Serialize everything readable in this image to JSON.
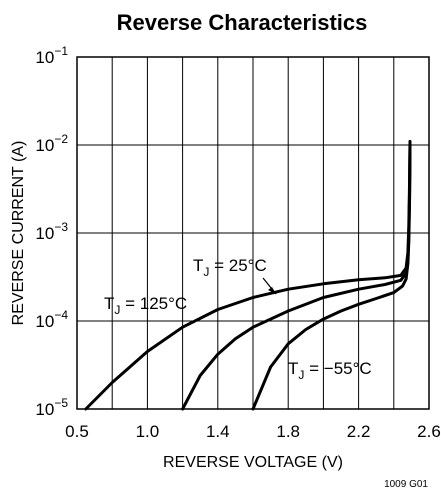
{
  "chart_data": {
    "type": "line",
    "title": "Reverse Characteristics",
    "xlabel": "REVERSE VOLTAGE (V)",
    "ylabel": "REVERSE CURRENT (A)",
    "x_ticks": [
      "0.5",
      "1.0",
      "1.4",
      "1.8",
      "2.2",
      "2.6"
    ],
    "y_ticks": [
      {
        "base": "10",
        "exp": "−1"
      },
      {
        "base": "10",
        "exp": "−2"
      },
      {
        "base": "10",
        "exp": "−3"
      },
      {
        "base": "10",
        "exp": "−4"
      },
      {
        "base": "10",
        "exp": "−5"
      }
    ],
    "xlim": [
      0.6,
      2.6
    ],
    "ylim": [
      1e-05,
      0.1
    ],
    "yscale": "log",
    "grid": true,
    "series": [
      {
        "name": "TJ = 125°C",
        "label": {
          "prefix": "T",
          "sub": "J",
          "suffix": " = 125°C"
        },
        "points": [
          [
            0.65,
            1e-05
          ],
          [
            0.8,
            2e-05
          ],
          [
            1.0,
            4.5e-05
          ],
          [
            1.2,
            8.5e-05
          ],
          [
            1.4,
            0.000135
          ],
          [
            1.6,
            0.000185
          ],
          [
            1.8,
            0.00023
          ],
          [
            2.0,
            0.000265
          ],
          [
            2.2,
            0.000295
          ],
          [
            2.35,
            0.00031
          ],
          [
            2.44,
            0.00033
          ],
          [
            2.47,
            0.0004
          ],
          [
            2.48,
            0.0006
          ],
          [
            2.485,
            0.0012
          ],
          [
            2.49,
            0.004
          ],
          [
            2.492,
            0.011
          ]
        ]
      },
      {
        "name": "TJ = 25°C",
        "label": {
          "prefix": "T",
          "sub": "J",
          "suffix": " = 25°C"
        },
        "points": [
          [
            1.2,
            1e-05
          ],
          [
            1.3,
            2.4e-05
          ],
          [
            1.4,
            4.2e-05
          ],
          [
            1.5,
            6.3e-05
          ],
          [
            1.6,
            8.5e-05
          ],
          [
            1.8,
            0.00013
          ],
          [
            2.0,
            0.000185
          ],
          [
            2.2,
            0.00023
          ],
          [
            2.35,
            0.00026
          ],
          [
            2.44,
            0.00029
          ],
          [
            2.47,
            0.00035
          ],
          [
            2.48,
            0.0005
          ],
          [
            2.485,
            0.0009
          ],
          [
            2.49,
            0.003
          ],
          [
            2.492,
            0.01
          ]
        ]
      },
      {
        "name": "TJ = −55°C",
        "label": {
          "prefix": "T",
          "sub": "J",
          "suffix": " = −55°C"
        },
        "points": [
          [
            1.6,
            1e-05
          ],
          [
            1.7,
            3e-05
          ],
          [
            1.8,
            5.5e-05
          ],
          [
            1.9,
            8e-05
          ],
          [
            2.0,
            0.000105
          ],
          [
            2.1,
            0.00013
          ],
          [
            2.2,
            0.000155
          ],
          [
            2.3,
            0.00018
          ],
          [
            2.4,
            0.00021
          ],
          [
            2.45,
            0.00025
          ],
          [
            2.47,
            0.0003
          ],
          [
            2.48,
            0.00045
          ],
          [
            2.485,
            0.0008
          ],
          [
            2.49,
            0.0025
          ],
          [
            2.492,
            0.009
          ]
        ]
      }
    ],
    "footnote": "1009 G01",
    "colors": {
      "line": "#000000",
      "grid": "#000000",
      "background": "#ffffff"
    }
  }
}
